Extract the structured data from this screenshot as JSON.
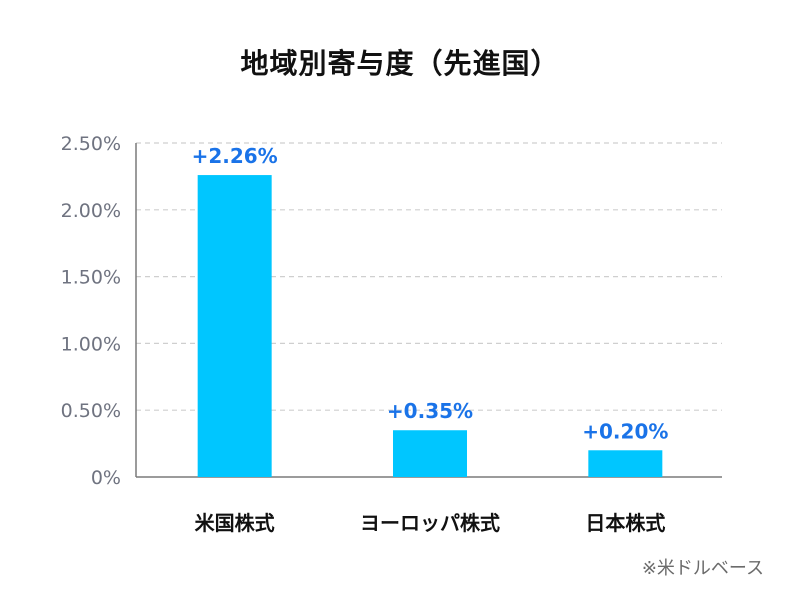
{
  "chart_data": {
    "type": "bar",
    "title": "地域別寄与度（先進国）",
    "categories": [
      "米国株式",
      "ヨーロッパ株式",
      "日本株式"
    ],
    "values": [
      2.26,
      0.35,
      0.2
    ],
    "data_labels": [
      "+2.26%",
      "+0.35%",
      "+0.20%"
    ],
    "ylim": [
      0,
      2.5
    ],
    "yticks": [
      0,
      0.5,
      1.0,
      1.5,
      2.0,
      2.5
    ],
    "ytick_labels": [
      "0%",
      "0.50%",
      "1.00%",
      "1.50%",
      "2.00%",
      "2.50%"
    ],
    "xlabel": "",
    "ylabel": "",
    "grid": true,
    "bar_color": "#00c6ff",
    "label_color": "#1a73e8"
  },
  "footnote": "※米ドルベース"
}
